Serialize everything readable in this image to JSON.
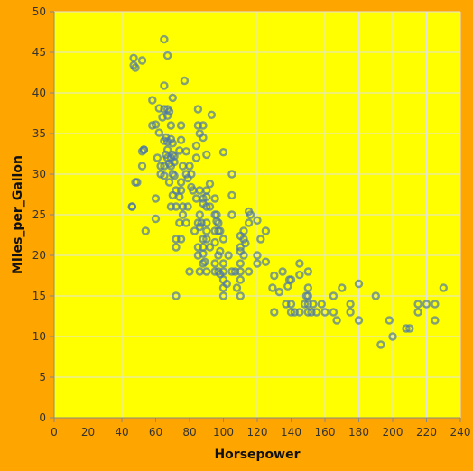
{
  "chart_data": {
    "type": "scatter",
    "xlabel": "Horsepower",
    "ylabel": "Miles_per_Gallon",
    "xlim": [
      0,
      240
    ],
    "ylim": [
      0,
      50
    ],
    "x_ticks": [
      0,
      20,
      40,
      60,
      80,
      100,
      120,
      140,
      160,
      180,
      200,
      220,
      240
    ],
    "y_ticks": [
      0,
      5,
      10,
      15,
      20,
      25,
      30,
      35,
      40,
      45,
      50
    ],
    "x_tick_labels": [
      "0",
      "20",
      "40",
      "60",
      "80",
      "100",
      "120",
      "140",
      "160",
      "180",
      "200",
      "220",
      "240"
    ],
    "y_tick_labels": [
      "0",
      "5",
      "10",
      "15",
      "20",
      "25",
      "30",
      "35",
      "40",
      "45",
      "50"
    ],
    "grid": true,
    "colors": {
      "plot_background": "#FFFF00",
      "page_background": "#FFA500",
      "point": "#4c78a8"
    },
    "series": [
      {
        "points": [
          [
            46,
            26
          ],
          [
            46,
            26
          ],
          [
            47,
            44.3
          ],
          [
            47,
            43.4
          ],
          [
            48,
            29
          ],
          [
            48,
            43.1
          ],
          [
            49,
            29
          ],
          [
            52,
            44
          ],
          [
            52,
            31
          ],
          [
            52,
            32.8
          ],
          [
            53,
            33
          ],
          [
            53,
            33
          ],
          [
            54,
            23
          ],
          [
            58,
            39.1
          ],
          [
            58,
            36
          ],
          [
            60,
            36.1
          ],
          [
            60,
            27
          ],
          [
            60,
            24.5
          ],
          [
            61,
            32
          ],
          [
            62,
            38.1
          ],
          [
            62,
            35.1
          ],
          [
            63,
            30
          ],
          [
            63,
            31
          ],
          [
            64,
            37
          ],
          [
            65,
            46.6
          ],
          [
            65,
            38
          ],
          [
            65,
            34.1
          ],
          [
            65,
            29.8
          ],
          [
            65,
            31
          ],
          [
            65,
            40.9
          ],
          [
            66,
            32.4
          ],
          [
            66,
            34.5
          ],
          [
            67,
            44.6
          ],
          [
            67,
            32
          ],
          [
            67,
            34
          ],
          [
            67,
            38
          ],
          [
            67,
            37.2
          ],
          [
            67,
            33
          ],
          [
            68,
            29
          ],
          [
            68,
            37.7
          ],
          [
            68,
            31.3
          ],
          [
            69,
            26
          ],
          [
            69,
            32
          ],
          [
            69,
            34.3
          ],
          [
            69,
            31
          ],
          [
            69,
            36
          ],
          [
            70,
            39.4
          ],
          [
            70,
            32.4
          ],
          [
            70,
            30
          ],
          [
            70,
            33.8
          ],
          [
            70,
            27.4
          ],
          [
            71,
            31.5
          ],
          [
            71,
            29.8
          ],
          [
            71,
            32.2
          ],
          [
            72,
            28
          ],
          [
            72,
            21
          ],
          [
            72,
            22
          ],
          [
            72,
            26
          ],
          [
            72,
            15
          ],
          [
            74,
            27.2
          ],
          [
            74,
            32.9
          ],
          [
            74,
            24
          ],
          [
            75,
            34.2
          ],
          [
            75,
            28
          ],
          [
            75,
            36
          ],
          [
            75,
            22
          ],
          [
            75,
            29
          ],
          [
            76,
            26
          ],
          [
            76,
            31
          ],
          [
            76,
            25
          ],
          [
            77,
            41.5
          ],
          [
            78,
            24
          ],
          [
            78,
            30
          ],
          [
            78,
            32.8
          ],
          [
            79,
            29.5
          ],
          [
            79,
            26
          ],
          [
            80,
            31
          ],
          [
            80,
            18
          ],
          [
            81,
            30
          ],
          [
            81,
            28.4
          ],
          [
            82,
            28
          ],
          [
            83,
            23
          ],
          [
            84,
            27
          ],
          [
            84,
            33.5
          ],
          [
            84,
            32
          ],
          [
            85,
            20
          ],
          [
            85,
            21
          ],
          [
            85,
            24
          ],
          [
            85,
            36
          ],
          [
            85,
            38
          ],
          [
            86,
            28
          ],
          [
            86,
            25
          ],
          [
            86,
            23.5
          ],
          [
            86,
            35
          ],
          [
            86,
            18
          ],
          [
            87,
            24
          ],
          [
            88,
            20.2
          ],
          [
            88,
            26.4
          ],
          [
            88,
            22
          ],
          [
            88,
            21
          ],
          [
            88,
            27
          ],
          [
            88,
            36
          ],
          [
            88,
            34.5
          ],
          [
            88,
            19
          ],
          [
            89,
            19.2
          ],
          [
            90,
            24
          ],
          [
            90,
            26
          ],
          [
            90,
            28
          ],
          [
            90,
            18
          ],
          [
            90,
            22
          ],
          [
            90,
            23
          ],
          [
            90,
            27.2
          ],
          [
            90,
            32.4
          ],
          [
            92,
            21
          ],
          [
            92,
            28.8
          ],
          [
            92,
            26
          ],
          [
            93,
            37.3
          ],
          [
            95,
            21.6
          ],
          [
            95,
            25
          ],
          [
            95,
            27
          ],
          [
            95,
            18
          ],
          [
            95,
            19
          ],
          [
            95,
            23
          ],
          [
            96,
            25
          ],
          [
            96,
            24.2
          ],
          [
            97,
            18
          ],
          [
            97,
            24
          ],
          [
            97,
            23
          ],
          [
            97,
            20
          ],
          [
            98,
            23
          ],
          [
            98,
            20.5
          ],
          [
            98,
            17.7
          ],
          [
            100,
            18
          ],
          [
            100,
            22
          ],
          [
            100,
            32.7
          ],
          [
            100,
            19
          ],
          [
            100,
            16
          ],
          [
            100,
            15
          ],
          [
            100,
            17
          ],
          [
            102,
            16.5
          ],
          [
            103,
            20
          ],
          [
            105,
            25
          ],
          [
            105,
            18
          ],
          [
            105,
            27.4
          ],
          [
            105,
            30
          ],
          [
            107,
            18
          ],
          [
            108,
            16
          ],
          [
            110,
            20.5
          ],
          [
            110,
            18
          ],
          [
            110,
            15
          ],
          [
            110,
            19
          ],
          [
            110,
            21
          ],
          [
            110,
            22.4
          ],
          [
            110,
            17
          ],
          [
            112,
            20
          ],
          [
            112,
            22
          ],
          [
            112,
            23
          ],
          [
            113,
            21.5
          ],
          [
            115,
            24
          ],
          [
            115,
            18
          ],
          [
            115,
            25.4
          ],
          [
            116,
            25
          ],
          [
            120,
            24.3
          ],
          [
            120,
            19
          ],
          [
            120,
            20
          ],
          [
            122,
            22
          ],
          [
            125,
            23
          ],
          [
            125,
            19.2
          ],
          [
            129,
            16
          ],
          [
            130,
            13
          ],
          [
            130,
            17.5
          ],
          [
            133,
            15.5
          ],
          [
            135,
            18
          ],
          [
            137,
            14
          ],
          [
            138,
            16.2
          ],
          [
            139,
            17
          ],
          [
            140,
            13
          ],
          [
            140,
            14
          ],
          [
            140,
            17
          ],
          [
            142,
            13
          ],
          [
            145,
            13
          ],
          [
            145,
            19
          ],
          [
            145,
            17.6
          ],
          [
            148,
            14
          ],
          [
            149,
            15
          ],
          [
            150,
            14
          ],
          [
            150,
            13
          ],
          [
            150,
            16
          ],
          [
            150,
            15
          ],
          [
            150,
            18
          ],
          [
            152,
            13
          ],
          [
            153,
            14
          ],
          [
            155,
            13
          ],
          [
            158,
            14
          ],
          [
            160,
            13
          ],
          [
            165,
            15
          ],
          [
            165,
            13
          ],
          [
            167,
            12
          ],
          [
            170,
            16
          ],
          [
            175,
            14
          ],
          [
            175,
            13
          ],
          [
            180,
            12
          ],
          [
            180,
            16.5
          ],
          [
            190,
            15
          ],
          [
            193,
            9
          ],
          [
            198,
            12
          ],
          [
            200,
            10
          ],
          [
            208,
            11
          ],
          [
            210,
            11
          ],
          [
            215,
            14
          ],
          [
            215,
            13
          ],
          [
            220,
            14
          ],
          [
            225,
            14
          ],
          [
            225,
            12
          ],
          [
            230,
            16
          ]
        ]
      }
    ]
  }
}
